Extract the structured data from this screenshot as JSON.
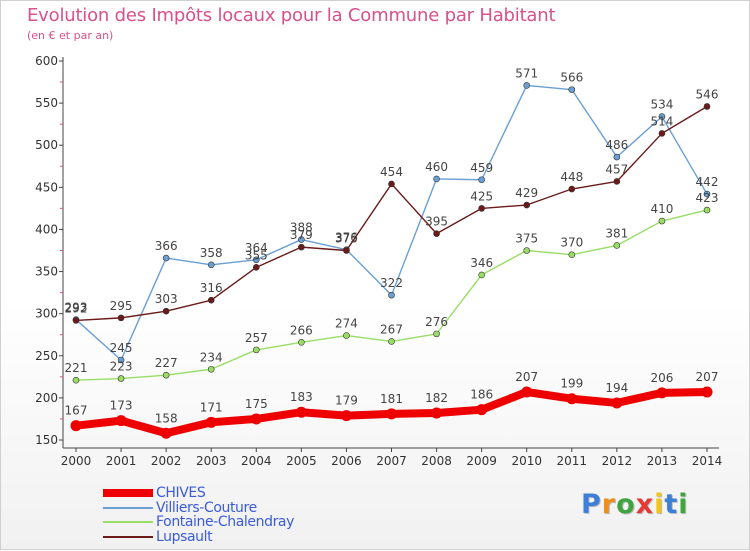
{
  "chart_data": {
    "type": "line",
    "title": "Evolution des Impôts locaux pour la Commune par Habitant",
    "subtitle": "(en € et par an)",
    "xlabel": "",
    "ylabel": "",
    "x": [
      "2000",
      "2001",
      "2002",
      "2003",
      "2004",
      "2005",
      "2006",
      "2007",
      "2008",
      "2009",
      "2010",
      "2011",
      "2012",
      "2013",
      "2014"
    ],
    "ylim": [
      150,
      600
    ],
    "yticks": [
      150,
      200,
      250,
      300,
      350,
      400,
      450,
      500,
      550,
      600
    ],
    "grid": false,
    "legend_position": "bottom-left",
    "series": [
      {
        "name": "CHIVES",
        "color": "#ee0000",
        "values": [
          167,
          173,
          158,
          171,
          175,
          183,
          179,
          181,
          182,
          186,
          207,
          199,
          194,
          206,
          207
        ]
      },
      {
        "name": "Villiers-Couture",
        "color": "#6a9fd4",
        "values": [
          293,
          245,
          366,
          358,
          364,
          388,
          376,
          322,
          460,
          459,
          571,
          566,
          486,
          534,
          442
        ]
      },
      {
        "name": "Fontaine-Chalendray",
        "color": "#99dd66",
        "values": [
          221,
          223,
          227,
          234,
          257,
          266,
          274,
          267,
          276,
          346,
          375,
          370,
          381,
          410,
          423
        ]
      },
      {
        "name": "Lupsault",
        "color": "#6b1a1a",
        "values": [
          292,
          295,
          303,
          316,
          355,
          379,
          375,
          454,
          395,
          425,
          429,
          448,
          457,
          514,
          546
        ]
      }
    ]
  },
  "brand": {
    "letters": [
      "P",
      "r",
      "o",
      "x",
      "i",
      "t",
      "i"
    ],
    "colors": [
      "#3d7fd6",
      "#f08c1a",
      "#3fa63f",
      "#e53935",
      "#f0c419",
      "#3d7fd6",
      "#3fa63f"
    ]
  }
}
